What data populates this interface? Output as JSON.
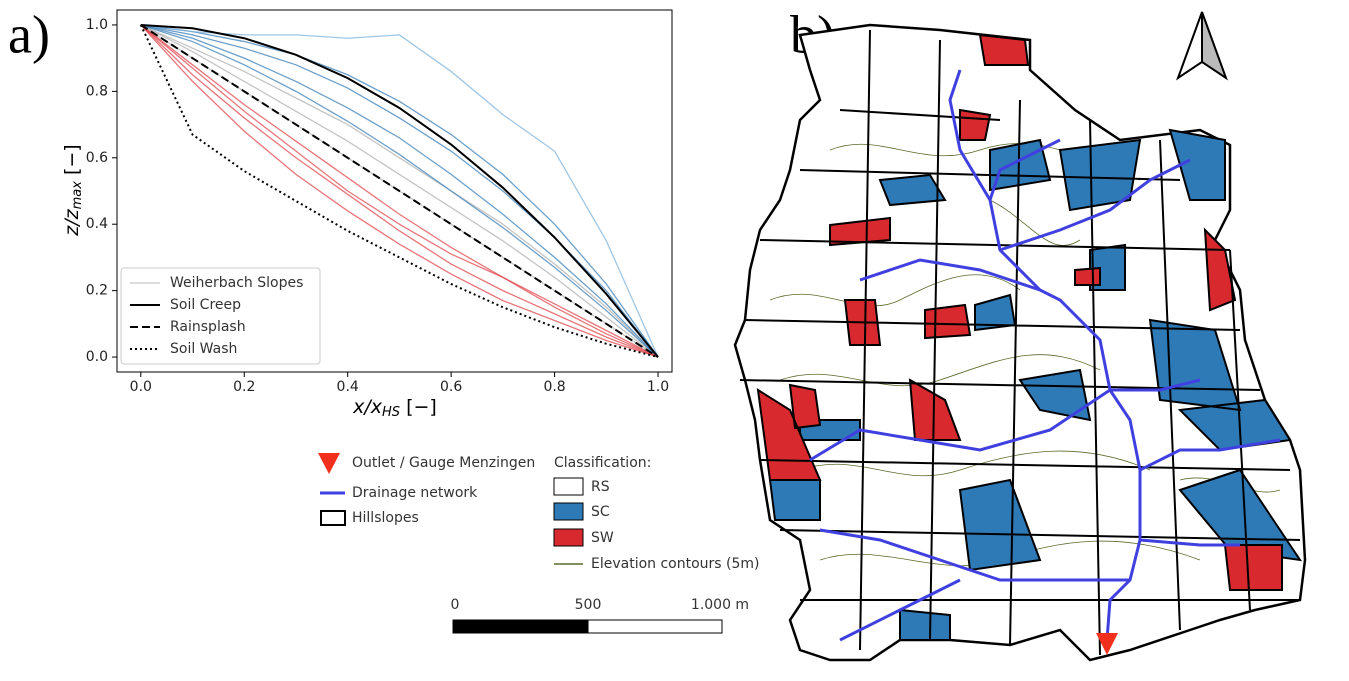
{
  "chart_data": [
    {
      "type": "line",
      "panel_label": "a)",
      "xlabel_parts": [
        "x/x",
        "HS",
        " [−]"
      ],
      "ylabel_parts": [
        "z/z",
        "max",
        " [−]"
      ],
      "x": [
        0,
        0.1,
        0.2,
        0.3,
        0.4,
        0.5,
        0.6,
        0.7,
        0.8,
        0.9,
        1.0
      ],
      "xlim": [
        -0.046,
        1.027
      ],
      "ylim": [
        -0.045,
        1.045
      ],
      "xticks": [
        {
          "value": 0,
          "label": "0.0"
        },
        0.2,
        0.4,
        0.6,
        0.8,
        {
          "value": 1,
          "label": "1.0"
        }
      ],
      "yticks": [
        {
          "value": 0,
          "label": "0.0"
        },
        0.2,
        0.4,
        0.6,
        0.8,
        {
          "value": 1,
          "label": "1.0"
        }
      ],
      "legend": "lower left",
      "series": [
        {
          "name": "Weiherbach Slopes",
          "color": "#c8c8c8",
          "dash": "solid",
          "lines": [
            {
              "color": "#b0b0b0",
              "values": [
                1,
                0.92,
                0.83,
                0.74,
                0.65,
                0.55,
                0.45,
                0.35,
                0.24,
                0.12,
                0
              ]
            },
            {
              "color": "#b0b0b0",
              "values": [
                1,
                0.9,
                0.8,
                0.7,
                0.6,
                0.5,
                0.4,
                0.3,
                0.2,
                0.1,
                0
              ]
            },
            {
              "color": "#b0b0b0",
              "values": [
                1,
                0.93,
                0.86,
                0.78,
                0.7,
                0.6,
                0.5,
                0.4,
                0.28,
                0.15,
                0
              ]
            },
            {
              "color": "#3b7fb8",
              "values": [
                1,
                0.97,
                0.93,
                0.88,
                0.81,
                0.72,
                0.62,
                0.5,
                0.36,
                0.2,
                0
              ]
            },
            {
              "color": "#3b7fb8",
              "values": [
                1,
                0.96,
                0.9,
                0.83,
                0.75,
                0.66,
                0.55,
                0.43,
                0.3,
                0.16,
                0
              ]
            },
            {
              "color": "#3b7fb8",
              "values": [
                1,
                0.95,
                0.88,
                0.8,
                0.71,
                0.61,
                0.5,
                0.39,
                0.27,
                0.14,
                0
              ]
            },
            {
              "color": "#3b7fb8",
              "values": [
                1,
                0.98,
                0.95,
                0.91,
                0.85,
                0.77,
                0.67,
                0.55,
                0.4,
                0.22,
                0
              ]
            },
            {
              "color": "#7fb3dc",
              "values": [
                1,
                0.98,
                0.97,
                0.97,
                0.96,
                0.97,
                0.86,
                0.73,
                0.62,
                0.35,
                0
              ]
            },
            {
              "color": "#e0474c",
              "values": [
                1,
                0.85,
                0.72,
                0.6,
                0.49,
                0.38,
                0.28,
                0.2,
                0.13,
                0.06,
                0
              ]
            },
            {
              "color": "#e0474c",
              "values": [
                1,
                0.88,
                0.76,
                0.65,
                0.54,
                0.43,
                0.33,
                0.24,
                0.15,
                0.07,
                0
              ]
            },
            {
              "color": "#e0474c",
              "values": [
                1,
                0.83,
                0.68,
                0.55,
                0.44,
                0.34,
                0.25,
                0.17,
                0.11,
                0.05,
                0
              ]
            },
            {
              "color": "#e0474c",
              "values": [
                1,
                0.87,
                0.74,
                0.62,
                0.5,
                0.4,
                0.31,
                0.24,
                0.16,
                0.08,
                0
              ]
            }
          ]
        },
        {
          "name": "Soil Creep",
          "color": "#000000",
          "dash": "solid",
          "values": [
            1,
            0.99,
            0.96,
            0.91,
            0.84,
            0.75,
            0.64,
            0.51,
            0.36,
            0.19,
            0
          ]
        },
        {
          "name": "Rainsplash",
          "color": "#000000",
          "dash": "dashed",
          "values": [
            1,
            0.9,
            0.8,
            0.7,
            0.6,
            0.5,
            0.4,
            0.3,
            0.2,
            0.1,
            0
          ]
        },
        {
          "name": "Soil Wash",
          "color": "#000000",
          "dash": "dotted",
          "values": [
            1,
            0.67,
            0.56,
            0.47,
            0.38,
            0.3,
            0.22,
            0.15,
            0.09,
            0.04,
            0
          ]
        }
      ]
    }
  ],
  "map": {
    "panel_label": "b)",
    "legend": {
      "outlet": "Outlet / Gauge Menzingen",
      "drainage": "Drainage network",
      "hillslopes": "Hillslopes",
      "classification_title": "Classification:",
      "classes": [
        "RS",
        "SC",
        "SW"
      ],
      "contours": "Elevation contours (5m)"
    },
    "scale_bar": [
      "0",
      "500",
      "1.000 m"
    ]
  }
}
